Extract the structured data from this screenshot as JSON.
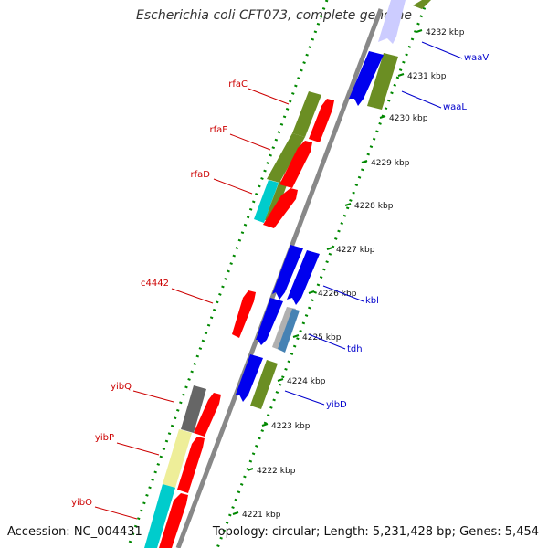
{
  "title": "Escherichia coli CFT073, complete genome",
  "footer": {
    "accession": "Accession: NC_004431",
    "topology": "Topology: circular; Length: 5,231,428 bp; Genes: 5,454"
  },
  "ticks": [
    "4221 kbp",
    "4222 kbp",
    "4223 kbp",
    "4224 kbp",
    "4225 kbp",
    "4226 kbp",
    "4227 kbp",
    "4228 kbp",
    "4229 kbp",
    "4230 kbp",
    "4231 kbp",
    "4232 kbp"
  ],
  "labels_left": [
    "rfaC",
    "rfaF",
    "rfaD",
    "c4442",
    "yibQ",
    "yibP",
    "yibO"
  ],
  "labels_right": [
    "waaV",
    "waaL",
    "kbl",
    "tdh",
    "yibD"
  ],
  "colors": {
    "blue": "#0000ee",
    "red": "#ff0000",
    "olive": "#6b8e23",
    "cyan": "#00cccc",
    "gray": "#666666",
    "khaki": "#eeee99",
    "lavender": "#c8c8ff",
    "steelblue": "#4682b4",
    "silver": "#b0b0b0",
    "dots": "#008800",
    "backbone": "#888888"
  }
}
